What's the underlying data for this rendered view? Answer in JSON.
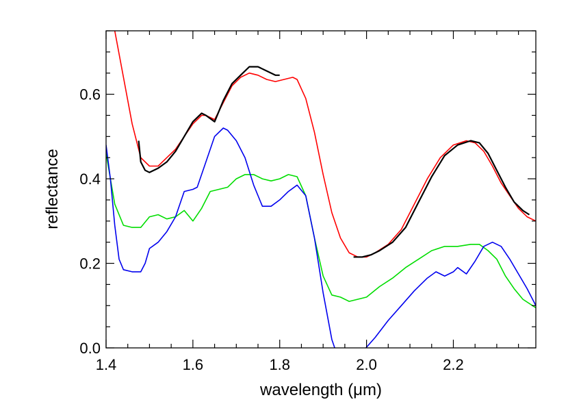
{
  "chart_data": {
    "type": "line",
    "title": "",
    "xlabel": "wavelength (μm)",
    "ylabel": "reflectance",
    "xlim": [
      1.4,
      2.39
    ],
    "ylim": [
      0.0,
      0.75
    ],
    "x_ticks": [
      1.4,
      1.6,
      1.8,
      2.0,
      2.2
    ],
    "x_tick_labels": [
      "1.4",
      "1.6",
      "1.8",
      "2.0",
      "2.2"
    ],
    "y_ticks": [
      0.0,
      0.2,
      0.4,
      0.6
    ],
    "y_tick_labels": [
      "0.0",
      "0.2",
      "0.4",
      "0.6"
    ],
    "grid": false,
    "legend": "none",
    "series": [
      {
        "color": "#ff0000",
        "x": [
          1.42,
          1.44,
          1.46,
          1.48,
          1.5,
          1.52,
          1.54,
          1.56,
          1.58,
          1.6,
          1.62,
          1.63,
          1.65,
          1.67,
          1.69,
          1.71,
          1.73,
          1.75,
          1.77,
          1.79,
          1.81,
          1.83,
          1.84,
          1.86,
          1.88,
          1.9,
          1.92,
          1.94,
          1.96,
          1.98,
          2.0,
          2.02,
          2.05,
          2.08,
          2.11,
          2.14,
          2.17,
          2.2,
          2.23,
          2.25,
          2.27,
          2.29,
          2.31,
          2.33,
          2.35,
          2.37,
          2.39
        ],
        "y": [
          0.75,
          0.64,
          0.53,
          0.45,
          0.43,
          0.43,
          0.45,
          0.47,
          0.5,
          0.53,
          0.55,
          0.55,
          0.54,
          0.58,
          0.62,
          0.64,
          0.65,
          0.645,
          0.635,
          0.63,
          0.635,
          0.64,
          0.635,
          0.59,
          0.51,
          0.41,
          0.32,
          0.26,
          0.225,
          0.215,
          0.215,
          0.225,
          0.245,
          0.28,
          0.34,
          0.4,
          0.45,
          0.48,
          0.49,
          0.485,
          0.465,
          0.43,
          0.39,
          0.36,
          0.33,
          0.31,
          0.3
        ]
      },
      {
        "color": "#000000",
        "x": [
          1.475,
          1.48,
          1.49,
          1.5,
          1.52,
          1.54,
          1.56,
          1.58,
          1.6,
          1.62,
          1.63,
          1.65,
          1.67,
          1.69,
          1.71,
          1.73,
          1.75,
          1.77,
          1.79,
          1.8
        ],
        "y": [
          0.49,
          0.44,
          0.42,
          0.415,
          0.425,
          0.44,
          0.465,
          0.5,
          0.535,
          0.555,
          0.55,
          0.535,
          0.585,
          0.625,
          0.645,
          0.665,
          0.665,
          0.655,
          0.645,
          0.645
        ]
      },
      {
        "color": "#000000",
        "x": [
          1.97,
          1.99,
          2.01,
          2.03,
          2.06,
          2.09,
          2.12,
          2.15,
          2.18,
          2.21,
          2.24,
          2.26,
          2.28,
          2.3,
          2.32,
          2.34,
          2.36,
          2.375
        ],
        "y": [
          0.215,
          0.215,
          0.22,
          0.23,
          0.25,
          0.285,
          0.345,
          0.405,
          0.455,
          0.48,
          0.49,
          0.485,
          0.46,
          0.42,
          0.38,
          0.345,
          0.325,
          0.315
        ]
      },
      {
        "color": "#00dd00",
        "x": [
          1.4,
          1.42,
          1.44,
          1.46,
          1.48,
          1.5,
          1.52,
          1.54,
          1.56,
          1.58,
          1.6,
          1.62,
          1.64,
          1.66,
          1.68,
          1.7,
          1.72,
          1.74,
          1.76,
          1.78,
          1.8,
          1.82,
          1.84,
          1.86,
          1.88,
          1.9,
          1.92,
          1.94,
          1.96,
          1.98,
          2.0,
          2.03,
          2.06,
          2.09,
          2.12,
          2.15,
          2.18,
          2.21,
          2.24,
          2.26,
          2.28,
          2.3,
          2.32,
          2.34,
          2.36,
          2.39
        ],
        "y": [
          0.46,
          0.34,
          0.29,
          0.285,
          0.285,
          0.31,
          0.315,
          0.305,
          0.31,
          0.325,
          0.3,
          0.33,
          0.37,
          0.375,
          0.38,
          0.4,
          0.41,
          0.41,
          0.4,
          0.395,
          0.4,
          0.41,
          0.405,
          0.36,
          0.26,
          0.17,
          0.125,
          0.12,
          0.11,
          0.115,
          0.12,
          0.145,
          0.165,
          0.19,
          0.21,
          0.23,
          0.24,
          0.24,
          0.245,
          0.245,
          0.23,
          0.21,
          0.17,
          0.14,
          0.115,
          0.095
        ]
      },
      {
        "color": "#0000ee",
        "x": [
          1.4,
          1.41,
          1.42,
          1.43,
          1.44,
          1.46,
          1.48,
          1.49,
          1.5,
          1.52,
          1.54,
          1.56,
          1.58,
          1.6,
          1.61,
          1.63,
          1.65,
          1.67,
          1.68,
          1.7,
          1.72,
          1.74,
          1.76,
          1.78,
          1.8,
          1.82,
          1.84,
          1.86,
          1.88,
          1.9,
          1.92,
          1.93
        ],
        "y": [
          0.48,
          0.4,
          0.29,
          0.21,
          0.185,
          0.18,
          0.18,
          0.2,
          0.235,
          0.25,
          0.275,
          0.31,
          0.37,
          0.375,
          0.38,
          0.44,
          0.5,
          0.52,
          0.515,
          0.49,
          0.45,
          0.385,
          0.335,
          0.335,
          0.35,
          0.37,
          0.385,
          0.36,
          0.26,
          0.13,
          0.02,
          -0.01
        ]
      },
      {
        "color": "#0000ee",
        "x": [
          1.99,
          2.02,
          2.05,
          2.08,
          2.11,
          2.14,
          2.16,
          2.18,
          2.2,
          2.21,
          2.23,
          2.25,
          2.27,
          2.29,
          2.31,
          2.33,
          2.35,
          2.37,
          2.39
        ],
        "y": [
          -0.01,
          0.025,
          0.065,
          0.1,
          0.135,
          0.165,
          0.18,
          0.17,
          0.18,
          0.19,
          0.175,
          0.205,
          0.24,
          0.25,
          0.24,
          0.21,
          0.175,
          0.14,
          0.1
        ]
      }
    ]
  }
}
